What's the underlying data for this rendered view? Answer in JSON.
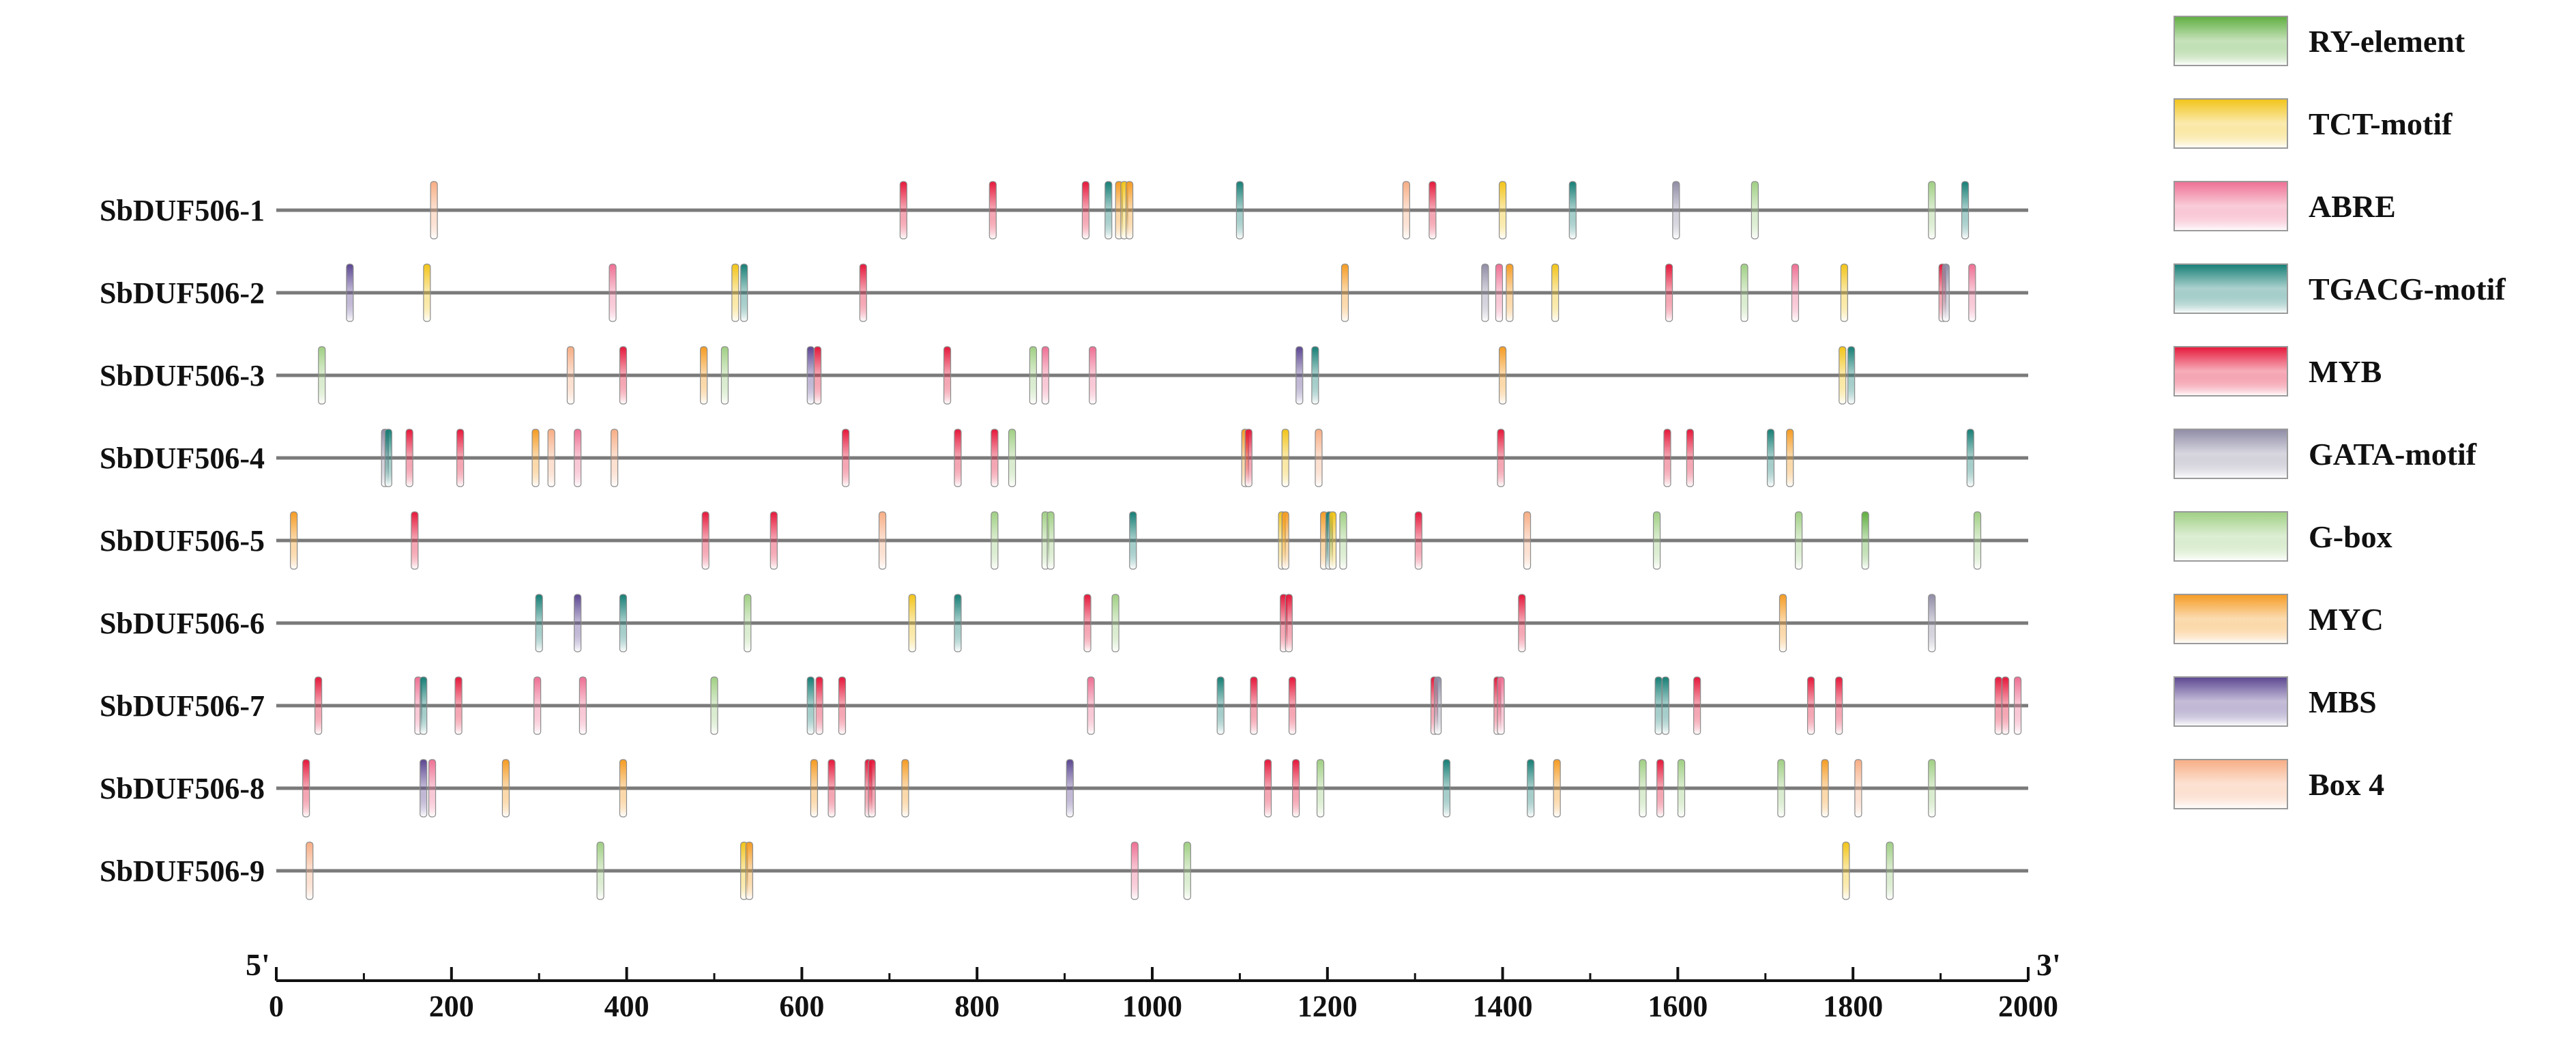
{
  "diagram": {
    "axis": {
      "min": 0,
      "max": 2000,
      "ticks": [
        0,
        200,
        400,
        600,
        800,
        1000,
        1200,
        1400,
        1600,
        1800,
        2000
      ],
      "start_label": "5'",
      "end_label": "3'"
    },
    "legend": [
      {
        "key": "RY",
        "label": "RY-element",
        "color": "#5fae3f"
      },
      {
        "key": "TCT",
        "label": "TCT-motif",
        "color": "#f2c418"
      },
      {
        "key": "ABRE",
        "label": "ABRE",
        "color": "#ee6f93"
      },
      {
        "key": "TGACG",
        "label": "TGACG-motif",
        "color": "#157e75"
      },
      {
        "key": "MYB",
        "label": "MYB",
        "color": "#e5173a"
      },
      {
        "key": "GATA",
        "label": "GATA-motif",
        "color": "#8f8ca5"
      },
      {
        "key": "GBOX",
        "label": "G-box",
        "color": "#9fcf83"
      },
      {
        "key": "MYC",
        "label": "MYC",
        "color": "#f59b22"
      },
      {
        "key": "MBS",
        "label": "MBS",
        "color": "#5b4691"
      },
      {
        "key": "BOX4",
        "label": "Box 4",
        "color": "#f7ad84"
      }
    ],
    "genes": [
      {
        "name": "SbDUF506-1",
        "elements": [
          {
            "t": "BOX4",
            "p": 180
          },
          {
            "t": "MYB",
            "p": 716
          },
          {
            "t": "MYB",
            "p": 818
          },
          {
            "t": "MYB",
            "p": 924
          },
          {
            "t": "TGACG",
            "p": 950
          },
          {
            "t": "MYC",
            "p": 962
          },
          {
            "t": "TCT",
            "p": 968
          },
          {
            "t": "MYC",
            "p": 974
          },
          {
            "t": "TGACG",
            "p": 1100
          },
          {
            "t": "BOX4",
            "p": 1290
          },
          {
            "t": "MYB",
            "p": 1320
          },
          {
            "t": "TCT",
            "p": 1400
          },
          {
            "t": "TGACG",
            "p": 1480
          },
          {
            "t": "GATA",
            "p": 1598
          },
          {
            "t": "GBOX",
            "p": 1688
          },
          {
            "t": "GBOX",
            "p": 1890
          },
          {
            "t": "TGACG",
            "p": 1928
          }
        ]
      },
      {
        "name": "SbDUF506-2",
        "elements": [
          {
            "t": "MBS",
            "p": 84
          },
          {
            "t": "TCT",
            "p": 172
          },
          {
            "t": "ABRE",
            "p": 384
          },
          {
            "t": "TCT",
            "p": 524
          },
          {
            "t": "TGACG",
            "p": 534
          },
          {
            "t": "MYB",
            "p": 670
          },
          {
            "t": "MYC",
            "p": 1220
          },
          {
            "t": "GATA",
            "p": 1380
          },
          {
            "t": "ABRE",
            "p": 1396
          },
          {
            "t": "MYC",
            "p": 1408
          },
          {
            "t": "TCT",
            "p": 1460
          },
          {
            "t": "MYB",
            "p": 1590
          },
          {
            "t": "GBOX",
            "p": 1676
          },
          {
            "t": "ABRE",
            "p": 1734
          },
          {
            "t": "TCT",
            "p": 1790
          },
          {
            "t": "MYB",
            "p": 1902
          },
          {
            "t": "GATA",
            "p": 1906
          },
          {
            "t": "ABRE",
            "p": 1936
          }
        ]
      },
      {
        "name": "SbDUF506-3",
        "elements": [
          {
            "t": "GBOX",
            "p": 52
          },
          {
            "t": "BOX4",
            "p": 336
          },
          {
            "t": "MYB",
            "p": 396
          },
          {
            "t": "MYC",
            "p": 488
          },
          {
            "t": "GBOX",
            "p": 512
          },
          {
            "t": "MBS",
            "p": 610
          },
          {
            "t": "MYB",
            "p": 618
          },
          {
            "t": "MYB",
            "p": 766
          },
          {
            "t": "GBOX",
            "p": 864
          },
          {
            "t": "ABRE",
            "p": 878
          },
          {
            "t": "ABRE",
            "p": 932
          },
          {
            "t": "MBS",
            "p": 1168
          },
          {
            "t": "TGACG",
            "p": 1186
          },
          {
            "t": "MYC",
            "p": 1400
          },
          {
            "t": "TCT",
            "p": 1788
          },
          {
            "t": "TGACG",
            "p": 1798
          }
        ]
      },
      {
        "name": "SbDUF506-4",
        "elements": [
          {
            "t": "GATA",
            "p": 124
          },
          {
            "t": "TGACG",
            "p": 128
          },
          {
            "t": "MYB",
            "p": 152
          },
          {
            "t": "MYB",
            "p": 210
          },
          {
            "t": "MYC",
            "p": 296
          },
          {
            "t": "BOX4",
            "p": 314
          },
          {
            "t": "ABRE",
            "p": 344
          },
          {
            "t": "BOX4",
            "p": 386
          },
          {
            "t": "MYB",
            "p": 650
          },
          {
            "t": "MYB",
            "p": 778
          },
          {
            "t": "MYB",
            "p": 820
          },
          {
            "t": "GBOX",
            "p": 840
          },
          {
            "t": "MYC",
            "p": 1106
          },
          {
            "t": "MYB",
            "p": 1110
          },
          {
            "t": "TCT",
            "p": 1152
          },
          {
            "t": "BOX4",
            "p": 1190
          },
          {
            "t": "MYB",
            "p": 1398
          },
          {
            "t": "MYB",
            "p": 1588
          },
          {
            "t": "MYB",
            "p": 1614
          },
          {
            "t": "TGACG",
            "p": 1706
          },
          {
            "t": "MYC",
            "p": 1728
          },
          {
            "t": "TGACG",
            "p": 1934
          }
        ]
      },
      {
        "name": "SbDUF506-5",
        "elements": [
          {
            "t": "MYC",
            "p": 20
          },
          {
            "t": "MYB",
            "p": 158
          },
          {
            "t": "MYB",
            "p": 490
          },
          {
            "t": "MYB",
            "p": 568
          },
          {
            "t": "BOX4",
            "p": 692
          },
          {
            "t": "GBOX",
            "p": 820
          },
          {
            "t": "GBOX",
            "p": 878
          },
          {
            "t": "GBOX",
            "p": 884
          },
          {
            "t": "TGACG",
            "p": 978
          },
          {
            "t": "TCT",
            "p": 1148
          },
          {
            "t": "MYC",
            "p": 1152
          },
          {
            "t": "MYC",
            "p": 1196
          },
          {
            "t": "TGACG",
            "p": 1202
          },
          {
            "t": "TCT",
            "p": 1206
          },
          {
            "t": "GBOX",
            "p": 1218
          },
          {
            "t": "MYB",
            "p": 1304
          },
          {
            "t": "BOX4",
            "p": 1428
          },
          {
            "t": "GBOX",
            "p": 1576
          },
          {
            "t": "GBOX",
            "p": 1738
          },
          {
            "t": "RY",
            "p": 1814
          },
          {
            "t": "GBOX",
            "p": 1942
          }
        ]
      },
      {
        "name": "SbDUF506-6",
        "elements": [
          {
            "t": "TGACG",
            "p": 300
          },
          {
            "t": "MBS",
            "p": 344
          },
          {
            "t": "TGACG",
            "p": 396
          },
          {
            "t": "GBOX",
            "p": 538
          },
          {
            "t": "TCT",
            "p": 726
          },
          {
            "t": "TGACG",
            "p": 778
          },
          {
            "t": "MYB",
            "p": 926
          },
          {
            "t": "GBOX",
            "p": 958
          },
          {
            "t": "MYB",
            "p": 1150
          },
          {
            "t": "MYB",
            "p": 1156
          },
          {
            "t": "MYB",
            "p": 1422
          },
          {
            "t": "MYC",
            "p": 1720
          },
          {
            "t": "GATA",
            "p": 1890
          }
        ]
      },
      {
        "name": "SbDUF506-7",
        "elements": [
          {
            "t": "MYB",
            "p": 48
          },
          {
            "t": "ABRE",
            "p": 162
          },
          {
            "t": "TGACG",
            "p": 168
          },
          {
            "t": "MYB",
            "p": 208
          },
          {
            "t": "ABRE",
            "p": 298
          },
          {
            "t": "ABRE",
            "p": 350
          },
          {
            "t": "GBOX",
            "p": 500
          },
          {
            "t": "TGACG",
            "p": 610
          },
          {
            "t": "MYB",
            "p": 620
          },
          {
            "t": "MYB",
            "p": 646
          },
          {
            "t": "ABRE",
            "p": 930
          },
          {
            "t": "TGACG",
            "p": 1078
          },
          {
            "t": "MYB",
            "p": 1116
          },
          {
            "t": "MYB",
            "p": 1160
          },
          {
            "t": "MYB",
            "p": 1322
          },
          {
            "t": "GATA",
            "p": 1326
          },
          {
            "t": "MYB",
            "p": 1394
          },
          {
            "t": "ABRE",
            "p": 1398
          },
          {
            "t": "TGACG",
            "p": 1578
          },
          {
            "t": "TGACG",
            "p": 1586
          },
          {
            "t": "MYB",
            "p": 1622
          },
          {
            "t": "MYB",
            "p": 1752
          },
          {
            "t": "MYB",
            "p": 1784
          },
          {
            "t": "MYB",
            "p": 1966
          },
          {
            "t": "MYB",
            "p": 1974
          },
          {
            "t": "ABRE",
            "p": 1988
          }
        ]
      },
      {
        "name": "SbDUF506-8",
        "elements": [
          {
            "t": "MYB",
            "p": 34
          },
          {
            "t": "MBS",
            "p": 168
          },
          {
            "t": "ABRE",
            "p": 178
          },
          {
            "t": "MYC",
            "p": 262
          },
          {
            "t": "MYC",
            "p": 396
          },
          {
            "t": "MYC",
            "p": 614
          },
          {
            "t": "MYB",
            "p": 634
          },
          {
            "t": "MYB",
            "p": 676
          },
          {
            "t": "MYB",
            "p": 680
          },
          {
            "t": "MYC",
            "p": 718
          },
          {
            "t": "MBS",
            "p": 906
          },
          {
            "t": "MYB",
            "p": 1132
          },
          {
            "t": "MYB",
            "p": 1164
          },
          {
            "t": "GBOX",
            "p": 1192
          },
          {
            "t": "TGACG",
            "p": 1336
          },
          {
            "t": "TGACG",
            "p": 1432
          },
          {
            "t": "MYC",
            "p": 1462
          },
          {
            "t": "GBOX",
            "p": 1560
          },
          {
            "t": "MYB",
            "p": 1580
          },
          {
            "t": "GBOX",
            "p": 1604
          },
          {
            "t": "GBOX",
            "p": 1718
          },
          {
            "t": "MYC",
            "p": 1768
          },
          {
            "t": "BOX4",
            "p": 1806
          },
          {
            "t": "GBOX",
            "p": 1890
          }
        ]
      },
      {
        "name": "SbDUF506-9",
        "elements": [
          {
            "t": "BOX4",
            "p": 38
          },
          {
            "t": "GBOX",
            "p": 370
          },
          {
            "t": "TCT",
            "p": 534
          },
          {
            "t": "MYC",
            "p": 540
          },
          {
            "t": "ABRE",
            "p": 980
          },
          {
            "t": "GBOX",
            "p": 1040
          },
          {
            "t": "TCT",
            "p": 1792
          },
          {
            "t": "GBOX",
            "p": 1842
          }
        ]
      }
    ]
  }
}
